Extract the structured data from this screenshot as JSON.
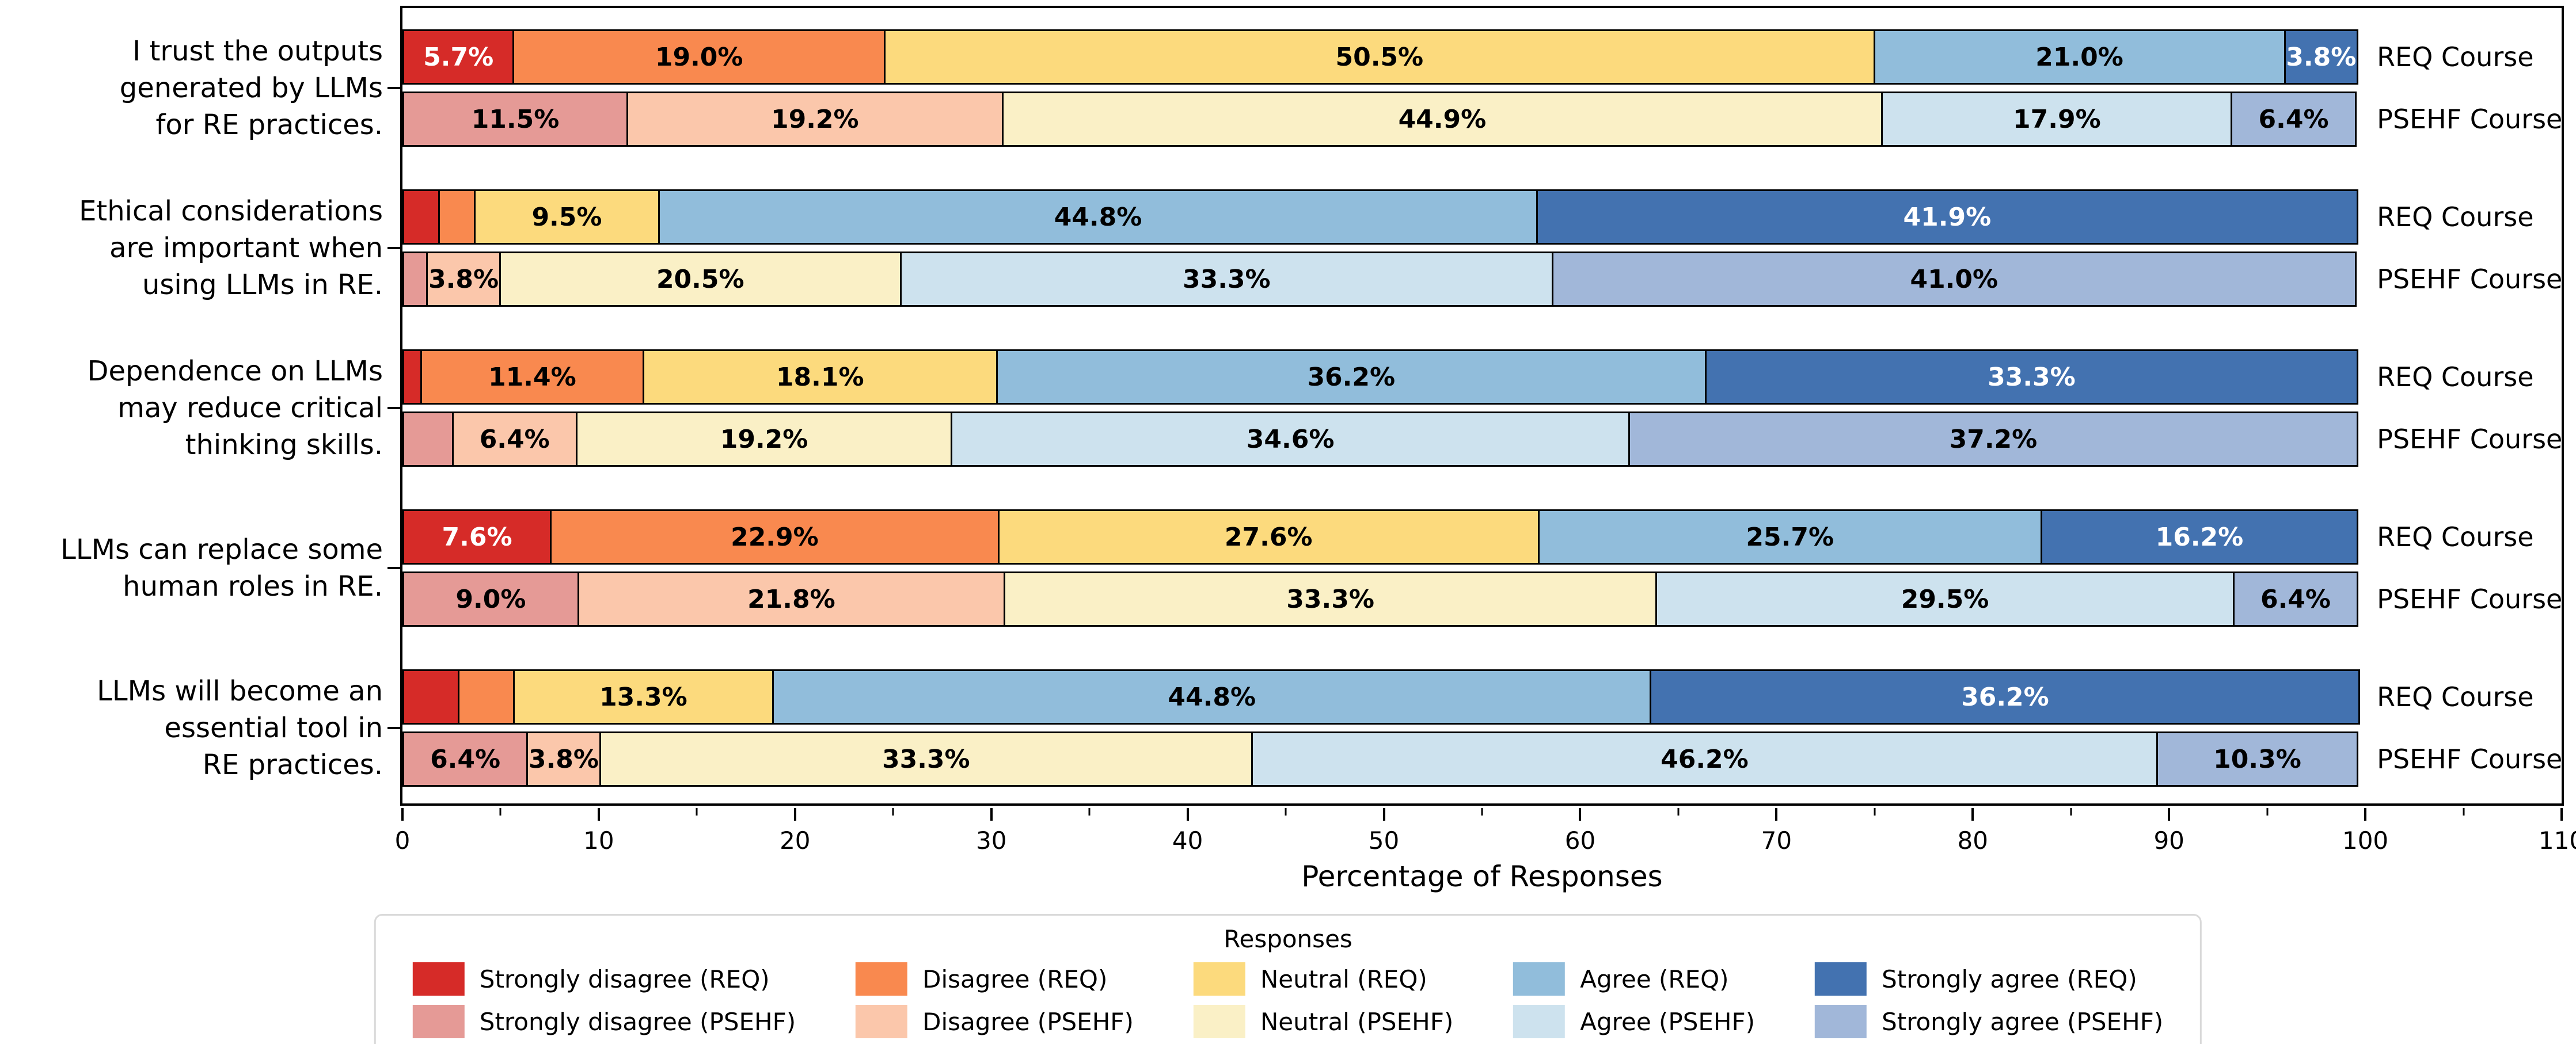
{
  "chart_data": {
    "type": "bar",
    "orientation": "horizontal_stacked",
    "xlabel": "Percentage of Responses",
    "xlim": [
      0,
      110
    ],
    "x_ticks": [
      0,
      10,
      20,
      30,
      40,
      50,
      60,
      70,
      80,
      90,
      100,
      110
    ],
    "x_minor_tick_step": 5,
    "min_label_pct": 3.5,
    "response_levels": [
      "Strongly disagree",
      "Disagree",
      "Neutral",
      "Agree",
      "Strongly agree"
    ],
    "series_colors": {
      "REQ": [
        "#d62b28",
        "#f9894f",
        "#fcda7d",
        "#91bddb",
        "#4372b0"
      ],
      "PSEHF": [
        "#e59a96",
        "#fbc7ab",
        "#faf0c6",
        "#cde2ee",
        "#a1b7d9"
      ]
    },
    "label_colors": {
      "REQ": [
        "#ffffff",
        "#000000",
        "#000000",
        "#000000",
        "#ffffff"
      ],
      "PSEHF": [
        "#000000",
        "#000000",
        "#000000",
        "#000000",
        "#000000"
      ]
    },
    "groups": [
      {
        "statement": "I trust the outputs generated by LLMs for RE practices.",
        "lines": [
          "I trust the outputs",
          "generated by LLMs",
          "for RE practices."
        ],
        "bars": [
          {
            "course": "REQ Course",
            "palette": "REQ",
            "values": [
              5.7,
              19.0,
              50.5,
              21.0,
              3.8
            ]
          },
          {
            "course": "PSEHF Course",
            "palette": "PSEHF",
            "values": [
              11.5,
              19.2,
              44.9,
              17.9,
              6.4
            ]
          }
        ]
      },
      {
        "statement": "Ethical considerations are important when using LLMs in RE.",
        "lines": [
          "Ethical considerations",
          "are important when",
          "using LLMs in RE."
        ],
        "bars": [
          {
            "course": "REQ Course",
            "palette": "REQ",
            "values": [
              1.9,
              1.9,
              9.5,
              44.8,
              41.9
            ]
          },
          {
            "course": "PSEHF Course",
            "palette": "PSEHF",
            "values": [
              1.3,
              3.8,
              20.5,
              33.3,
              41.0
            ]
          }
        ]
      },
      {
        "statement": "Dependence on LLMs may reduce critical thinking skills.",
        "lines": [
          "Dependence on LLMs",
          "may reduce critical",
          "thinking skills."
        ],
        "bars": [
          {
            "course": "REQ Course",
            "palette": "REQ",
            "values": [
              1.0,
              11.4,
              18.1,
              36.2,
              33.3
            ]
          },
          {
            "course": "PSEHF Course",
            "palette": "PSEHF",
            "values": [
              2.6,
              6.4,
              19.2,
              34.6,
              37.2
            ]
          }
        ]
      },
      {
        "statement": "LLMs can replace some human roles in RE.",
        "lines": [
          "LLMs can replace some",
          "human roles in RE."
        ],
        "bars": [
          {
            "course": "REQ Course",
            "palette": "REQ",
            "values": [
              7.6,
              22.9,
              27.6,
              25.7,
              16.2
            ]
          },
          {
            "course": "PSEHF Course",
            "palette": "PSEHF",
            "values": [
              9.0,
              21.8,
              33.3,
              29.5,
              6.4
            ]
          }
        ]
      },
      {
        "statement": "LLMs will become an essential tool in RE practices.",
        "lines": [
          "LLMs will become an",
          "essential tool in",
          "RE practices."
        ],
        "bars": [
          {
            "course": "REQ Course",
            "palette": "REQ",
            "values": [
              2.9,
              2.9,
              13.3,
              44.8,
              36.2
            ]
          },
          {
            "course": "PSEHF Course",
            "palette": "PSEHF",
            "values": [
              6.4,
              3.8,
              33.3,
              46.2,
              10.3
            ]
          }
        ]
      }
    ],
    "legend": {
      "title": "Responses",
      "entries": [
        {
          "label": "Strongly disagree (REQ)",
          "color": "#d62b28"
        },
        {
          "label": "Disagree (REQ)",
          "color": "#f9894f"
        },
        {
          "label": "Neutral (REQ)",
          "color": "#fcda7d"
        },
        {
          "label": "Agree (REQ)",
          "color": "#91bddb"
        },
        {
          "label": "Strongly agree (REQ)",
          "color": "#4372b0"
        },
        {
          "label": "Strongly disagree (PSEHF)",
          "color": "#e59a96"
        },
        {
          "label": "Disagree (PSEHF)",
          "color": "#fbc7ab"
        },
        {
          "label": "Neutral (PSEHF)",
          "color": "#faf0c6"
        },
        {
          "label": "Agree (PSEHF)",
          "color": "#cde2ee"
        },
        {
          "label": "Strongly agree (PSEHF)",
          "color": "#a1b7d9"
        }
      ]
    }
  }
}
